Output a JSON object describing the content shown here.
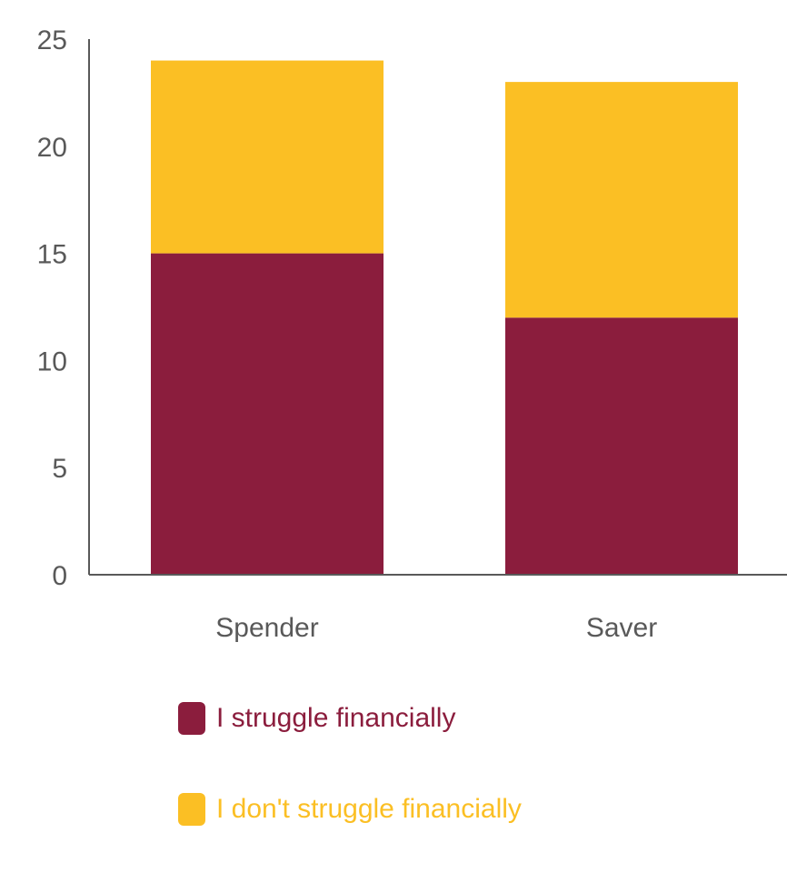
{
  "chart_data": {
    "type": "bar",
    "stacked": true,
    "categories": [
      "Spender",
      "Saver"
    ],
    "series": [
      {
        "name": "I struggle financially",
        "values": [
          15,
          12
        ],
        "color": "#8b1d3d"
      },
      {
        "name": "I don't struggle financially",
        "values": [
          9,
          11
        ],
        "color": "#fbbf24"
      }
    ],
    "ylim": [
      0,
      25
    ],
    "yticks": [
      "0",
      "5",
      "10",
      "15",
      "20",
      "25"
    ],
    "grid": false,
    "legend_position": "bottom"
  },
  "legend": {
    "items": [
      {
        "label": "I struggle financially",
        "color": "#8b1d3d",
        "text_color": "#8b1d3d"
      },
      {
        "label": "I don't struggle financially",
        "color": "#fbbf24",
        "text_color": "#fbbf24"
      }
    ]
  }
}
